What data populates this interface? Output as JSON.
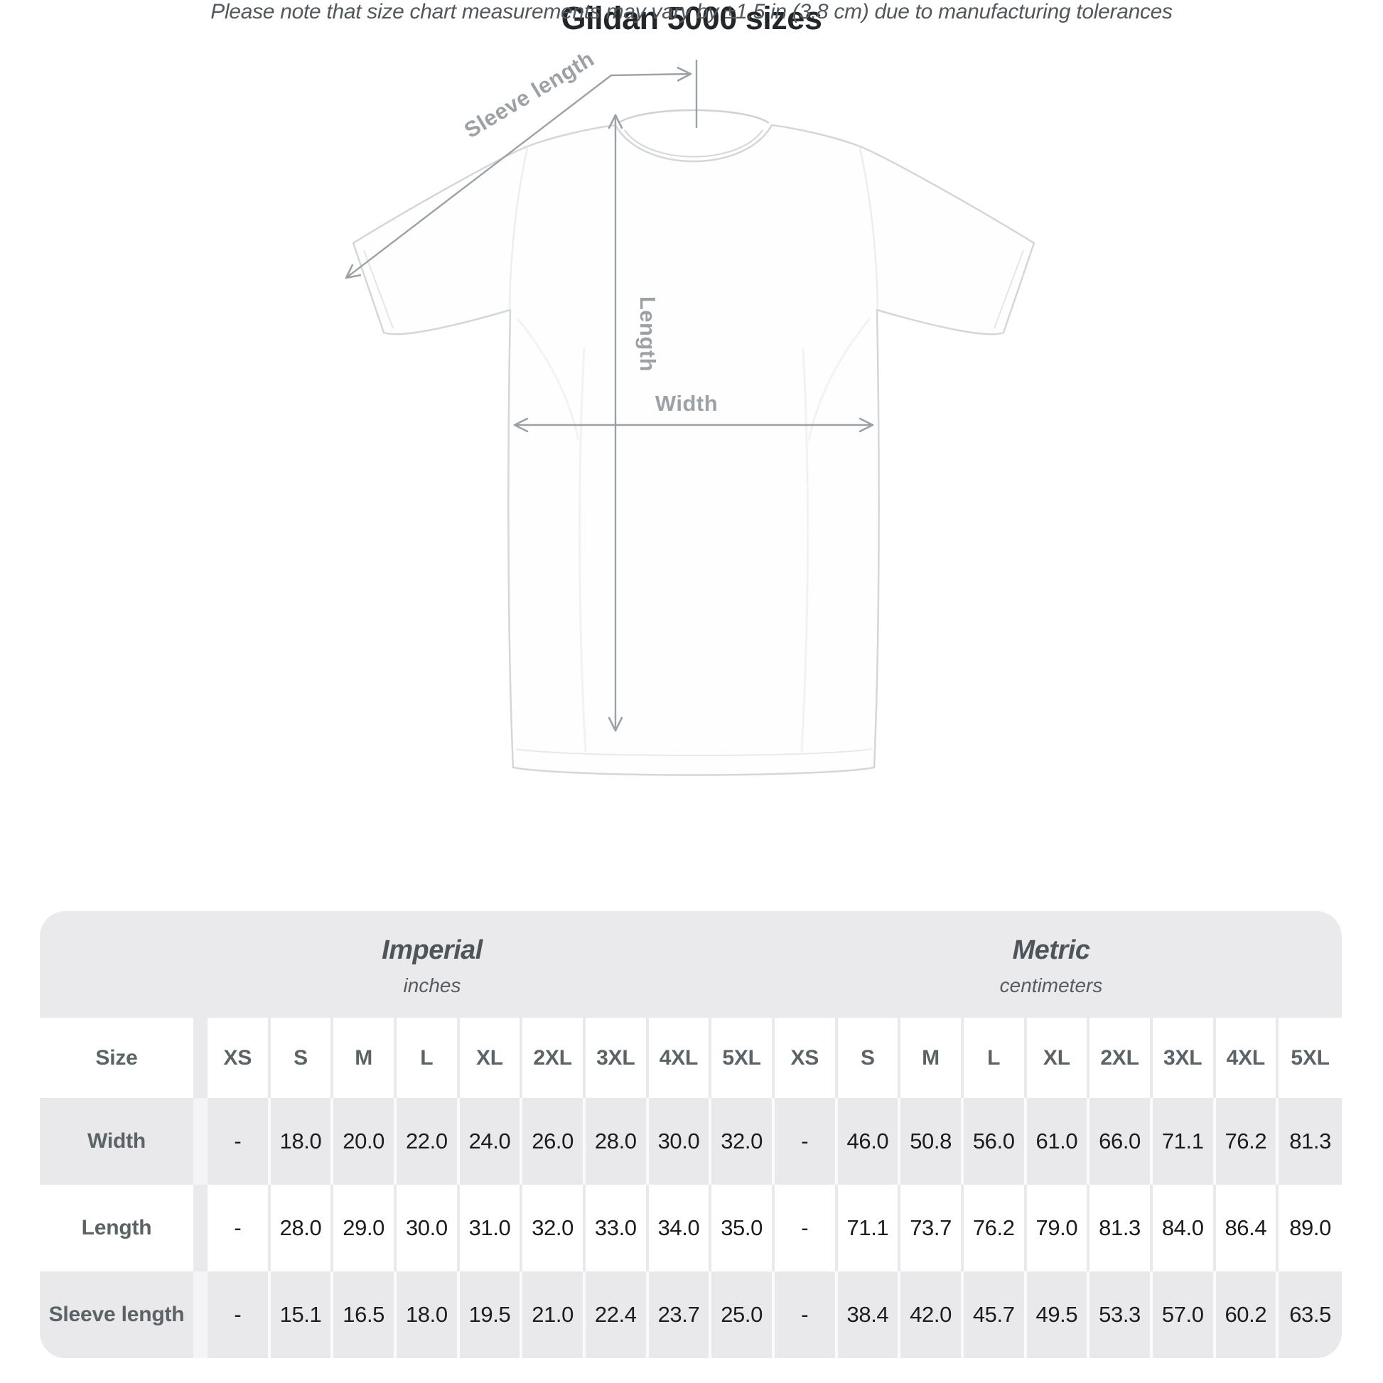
{
  "diagram": {
    "sleeve_length_label": "Sleeve length",
    "length_label": "Length",
    "width_label": "Width"
  },
  "header": {
    "title": "Gildan 5000 sizes",
    "subtitle": "Please note that size chart measurements may vary by ±1.5 in (3.8 cm) due to manufacturing tolerances"
  },
  "chart_data": {
    "type": "table",
    "title": "Gildan 5000 sizes",
    "size_column_label": "Size",
    "sizes": [
      "XS",
      "S",
      "M",
      "L",
      "XL",
      "2XL",
      "3XL",
      "4XL",
      "5XL"
    ],
    "unit_groups": [
      {
        "name": "Imperial",
        "unit": "inches"
      },
      {
        "name": "Metric",
        "unit": "centimeters"
      }
    ],
    "rows": [
      {
        "label": "Width",
        "imperial": [
          "-",
          "18.0",
          "20.0",
          "22.0",
          "24.0",
          "26.0",
          "28.0",
          "30.0",
          "32.0"
        ],
        "metric": [
          "-",
          "46.0",
          "50.8",
          "56.0",
          "61.0",
          "66.0",
          "71.1",
          "76.2",
          "81.3"
        ]
      },
      {
        "label": "Length",
        "imperial": [
          "-",
          "28.0",
          "29.0",
          "30.0",
          "31.0",
          "32.0",
          "33.0",
          "34.0",
          "35.0"
        ],
        "metric": [
          "-",
          "71.1",
          "73.7",
          "76.2",
          "79.0",
          "81.3",
          "84.0",
          "86.4",
          "89.0"
        ]
      },
      {
        "label": "Sleeve length",
        "imperial": [
          "-",
          "15.1",
          "16.5",
          "18.0",
          "19.5",
          "21.0",
          "22.4",
          "23.7",
          "25.0"
        ],
        "metric": [
          "-",
          "38.4",
          "42.0",
          "45.7",
          "49.5",
          "53.3",
          "57.0",
          "60.2",
          "63.5"
        ]
      }
    ]
  },
  "colors": {
    "table_background": "#eaeaec",
    "stripe_row": "#e9e9eb",
    "white_row": "#ffffff",
    "heading_text": "#5b6367",
    "value_text": "#1a1c1e",
    "title_text": "#232628",
    "subtitle_text": "#53585c",
    "annotation": "#9ba1a5"
  }
}
